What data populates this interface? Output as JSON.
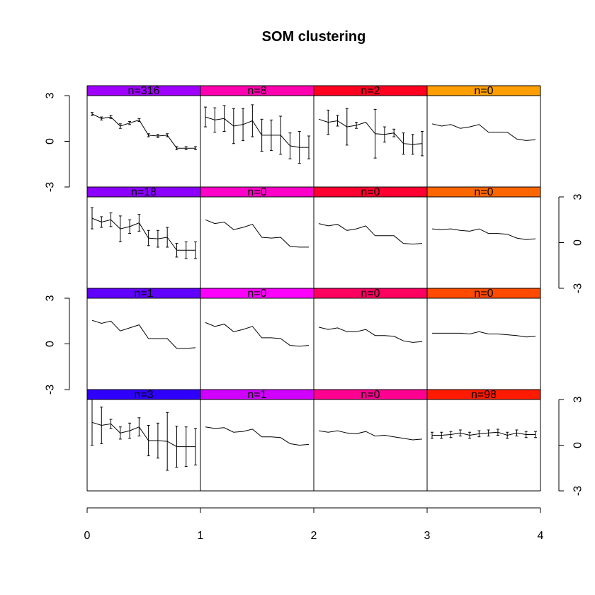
{
  "chart_data": {
    "type": "line",
    "title": "SOM clustering",
    "grid_columns": 4,
    "grid_rows": 4,
    "x_axis": {
      "ticks": [
        "0",
        "1",
        "2",
        "3",
        "4"
      ],
      "range": [
        0,
        4
      ]
    },
    "y_axis": {
      "ticks": [
        "-3",
        "0",
        "3"
      ],
      "range": [
        -3,
        3
      ]
    },
    "points_per_profile": 12,
    "panels": [
      {
        "row": 1,
        "col": 1,
        "label": "n=316",
        "color": "#A000FF",
        "errorbars": true,
        "means": [
          1.8,
          1.5,
          1.6,
          1.0,
          1.2,
          1.4,
          0.4,
          0.35,
          0.4,
          -0.45,
          -0.45,
          -0.45
        ],
        "err": [
          0.1,
          0.1,
          0.1,
          0.15,
          0.1,
          0.1,
          0.1,
          0.1,
          0.1,
          0.1,
          0.1,
          0.1
        ]
      },
      {
        "row": 1,
        "col": 2,
        "label": "n=8",
        "color": "#FF00B0",
        "errorbars": true,
        "means": [
          1.6,
          1.4,
          1.5,
          1.0,
          1.1,
          1.35,
          0.4,
          0.4,
          0.4,
          -0.3,
          -0.4,
          -0.4
        ],
        "err": [
          0.65,
          0.8,
          0.85,
          1.15,
          1.05,
          1.05,
          1.05,
          1.0,
          1.25,
          0.85,
          1.05,
          0.75
        ]
      },
      {
        "row": 1,
        "col": 3,
        "label": "n=2",
        "color": "#FF0020",
        "errorbars": true,
        "means": [
          1.45,
          1.25,
          1.35,
          0.95,
          1.05,
          1.25,
          0.5,
          0.45,
          0.55,
          -0.15,
          -0.2,
          -0.15
        ],
        "err": [
          0.0,
          0.8,
          0.35,
          1.2,
          0.2,
          0.0,
          1.6,
          0.5,
          0.25,
          0.7,
          0.65,
          0.8
        ]
      },
      {
        "row": 1,
        "col": 4,
        "label": "n=0",
        "color": "#FF9E00",
        "errorbars": false,
        "means": [
          1.15,
          1.0,
          1.1,
          0.85,
          0.95,
          1.1,
          0.6,
          0.6,
          0.6,
          0.15,
          0.05,
          0.1
        ],
        "err": []
      },
      {
        "row": 2,
        "col": 1,
        "label": "n=18",
        "color": "#8C00FF",
        "errorbars": true,
        "means": [
          1.6,
          1.35,
          1.5,
          0.9,
          1.05,
          1.3,
          0.3,
          0.25,
          0.35,
          -0.5,
          -0.5,
          -0.5
        ],
        "err": [
          0.7,
          0.35,
          0.45,
          0.85,
          0.45,
          0.55,
          0.5,
          0.55,
          0.65,
          0.45,
          0.55,
          0.55
        ]
      },
      {
        "row": 2,
        "col": 2,
        "label": "n=0",
        "color": "#FF00C8",
        "errorbars": false,
        "means": [
          1.5,
          1.25,
          1.35,
          0.85,
          1.0,
          1.2,
          0.35,
          0.3,
          0.35,
          -0.25,
          -0.3,
          -0.3
        ],
        "err": []
      },
      {
        "row": 2,
        "col": 3,
        "label": "n=0",
        "color": "#FF0030",
        "errorbars": false,
        "means": [
          1.25,
          1.1,
          1.2,
          0.8,
          0.9,
          1.1,
          0.45,
          0.45,
          0.45,
          -0.05,
          -0.1,
          -0.05
        ],
        "err": []
      },
      {
        "row": 2,
        "col": 4,
        "label": "n=0",
        "color": "#FF6600",
        "errorbars": false,
        "means": [
          0.9,
          0.85,
          0.9,
          0.8,
          0.75,
          0.9,
          0.6,
          0.6,
          0.55,
          0.3,
          0.2,
          0.25
        ],
        "err": []
      },
      {
        "row": 3,
        "col": 1,
        "label": "n=1",
        "color": "#6000FF",
        "errorbars": false,
        "means": [
          1.55,
          1.35,
          1.5,
          0.85,
          1.05,
          1.25,
          0.35,
          0.35,
          0.35,
          -0.3,
          -0.3,
          -0.25
        ],
        "err": []
      },
      {
        "row": 3,
        "col": 2,
        "label": "n=0",
        "color": "#FF00FF",
        "errorbars": false,
        "means": [
          1.4,
          1.15,
          1.3,
          0.8,
          0.95,
          1.15,
          0.4,
          0.4,
          0.35,
          -0.1,
          -0.15,
          -0.1
        ],
        "err": []
      },
      {
        "row": 3,
        "col": 3,
        "label": "n=0",
        "color": "#FF0060",
        "errorbars": false,
        "means": [
          1.1,
          0.95,
          1.05,
          0.8,
          0.8,
          0.95,
          0.55,
          0.55,
          0.5,
          0.2,
          0.1,
          0.15
        ],
        "err": []
      },
      {
        "row": 3,
        "col": 4,
        "label": "n=0",
        "color": "#FF4A00",
        "errorbars": false,
        "means": [
          0.7,
          0.7,
          0.7,
          0.7,
          0.65,
          0.8,
          0.65,
          0.65,
          0.6,
          0.55,
          0.45,
          0.5
        ],
        "err": []
      },
      {
        "row": 4,
        "col": 1,
        "label": "n=3",
        "color": "#3000FF",
        "errorbars": true,
        "means": [
          1.5,
          1.3,
          1.4,
          0.8,
          0.95,
          1.2,
          0.3,
          0.3,
          0.25,
          -0.1,
          -0.1,
          -0.1
        ],
        "err": [
          1.5,
          1.2,
          0.3,
          0.4,
          0.5,
          0.6,
          1.0,
          1.15,
          1.9,
          1.35,
          1.3,
          1.2
        ]
      },
      {
        "row": 4,
        "col": 2,
        "label": "n=1",
        "color": "#D000FF",
        "errorbars": false,
        "means": [
          1.2,
          1.1,
          1.15,
          0.85,
          0.9,
          1.05,
          0.55,
          0.55,
          0.5,
          0.1,
          0.0,
          0.05
        ],
        "err": []
      },
      {
        "row": 4,
        "col": 3,
        "label": "n=0",
        "color": "#FF0090",
        "errorbars": false,
        "means": [
          0.95,
          0.85,
          0.95,
          0.8,
          0.75,
          0.9,
          0.6,
          0.65,
          0.55,
          0.45,
          0.35,
          0.4
        ],
        "err": []
      },
      {
        "row": 4,
        "col": 4,
        "label": "n=98",
        "color": "#FF1A00",
        "errorbars": true,
        "means": [
          0.65,
          0.65,
          0.7,
          0.8,
          0.65,
          0.75,
          0.8,
          0.85,
          0.65,
          0.8,
          0.7,
          0.7
        ],
        "err": [
          0.2,
          0.2,
          0.2,
          0.2,
          0.2,
          0.2,
          0.2,
          0.2,
          0.2,
          0.2,
          0.2,
          0.2
        ]
      }
    ]
  }
}
